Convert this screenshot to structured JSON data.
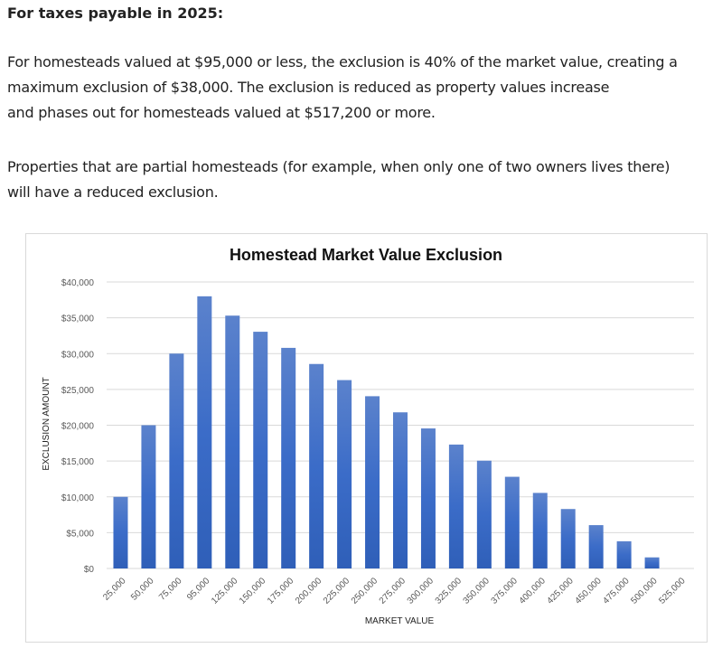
{
  "heading": "For taxes payable in 2025:",
  "paragraphs": [
    [
      "For homesteads valued at $95,000 or less, the exclusion is 40% of the market value, creating a",
      "maximum exclusion of $38,000. The exclusion is reduced as property values increase",
      "and phases out for homesteads valued at $517,200 or more."
    ],
    [
      "Properties that are partial homesteads (for example, when only one of two owners lives there)",
      "will have a reduced exclusion."
    ]
  ],
  "chart_data": {
    "type": "bar",
    "title": "Homestead Market Value Exclusion",
    "xlabel": "MARKET VALUE",
    "ylabel": "EXCLUSION AMOUNT",
    "ylim": [
      0,
      40000
    ],
    "yticks": [
      "$0",
      "$5,000",
      "$10,000",
      "$15,000",
      "$20,000",
      "$25,000",
      "$30,000",
      "$35,000",
      "$40,000"
    ],
    "grid": true,
    "bar_color": "#4472c4",
    "categories": [
      "25,000",
      "50,000",
      "75,000",
      "95,000",
      "125,000",
      "150,000",
      "175,000",
      "200,000",
      "225,000",
      "250,000",
      "275,000",
      "300,000",
      "325,000",
      "350,000",
      "375,000",
      "400,000",
      "425,000",
      "450,000",
      "475,000",
      "500,000",
      "525,000"
    ],
    "values": [
      10000,
      20000,
      30000,
      38000,
      35300,
      33050,
      30800,
      28550,
      26300,
      24050,
      21800,
      19550,
      17300,
      15050,
      12800,
      10550,
      8300,
      6050,
      3800,
      1550,
      0
    ]
  }
}
